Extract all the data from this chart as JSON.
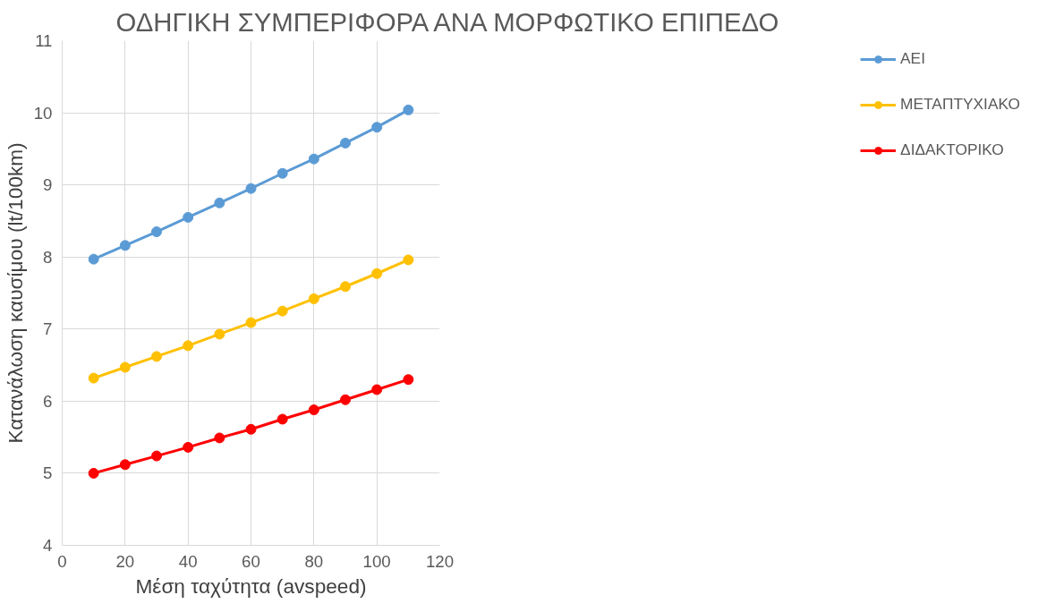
{
  "chart_data": {
    "type": "line",
    "title": "ΟΔΗΓΙΚΗ ΣΥΜΠΕΡΙΦΟΡΑ ΑΝΑ ΜΟΡΦΩΤΙΚΟ ΕΠΙΠΕΔΟ",
    "xlabel": "Μέση ταχύτητα (avspeed)",
    "ylabel": "Κατανάλωση καυσίμου (lt/100km)",
    "x": [
      10,
      20,
      30,
      40,
      50,
      60,
      70,
      80,
      90,
      100,
      110
    ],
    "series": [
      {
        "name": "ΑΕΙ",
        "color": "#5b9bd5",
        "values": [
          7.97,
          8.16,
          8.35,
          8.55,
          8.75,
          8.95,
          9.16,
          9.36,
          9.58,
          9.8,
          10.04
        ]
      },
      {
        "name": "ΜΕΤΑΠΤΥΧΙΑΚΟ",
        "color": "#ffc000",
        "values": [
          6.32,
          6.47,
          6.62,
          6.77,
          6.93,
          7.09,
          7.25,
          7.42,
          7.59,
          7.77,
          7.96
        ]
      },
      {
        "name": "ΔΙΔΑΚΤΟΡΙΚΟ",
        "color": "#ff0000",
        "values": [
          5.0,
          5.12,
          5.24,
          5.36,
          5.49,
          5.61,
          5.75,
          5.88,
          6.02,
          6.16,
          6.3
        ]
      }
    ],
    "xlim": [
      0,
      120
    ],
    "xticks": [
      0,
      20,
      40,
      60,
      80,
      100,
      120
    ],
    "ylim": [
      4,
      11
    ],
    "yticks": [
      4,
      5,
      6,
      7,
      8,
      9,
      10,
      11
    ],
    "grid": true,
    "legend": "right",
    "marker": "circle",
    "line_style": "solid"
  }
}
